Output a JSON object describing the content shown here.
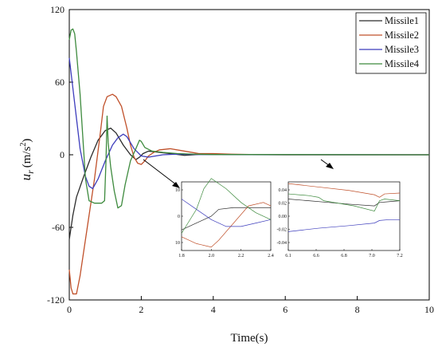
{
  "chart_data": {
    "type": "line",
    "xlabel": "Time(s)",
    "ylabel_main": "u",
    "ylabel_sub": "r",
    "ylabel_unit": "(m/s",
    "ylabel_exp": "2",
    "ylabel_close": ")",
    "xlim": [
      0,
      10
    ],
    "ylim": [
      -120,
      120
    ],
    "x_ticks": [
      0,
      2,
      4,
      6,
      8,
      10
    ],
    "y_ticks": [
      -120,
      -60,
      0,
      60,
      120
    ],
    "grid": false,
    "legend_position": "top-right",
    "series": [
      {
        "name": "Missile1",
        "color": "#2b2b2b",
        "points": [
          [
            0,
            -70
          ],
          [
            0.1,
            -50
          ],
          [
            0.2,
            -35
          ],
          [
            0.4,
            -18
          ],
          [
            0.6,
            -2
          ],
          [
            0.8,
            12
          ],
          [
            1.0,
            20
          ],
          [
            1.15,
            22
          ],
          [
            1.3,
            18
          ],
          [
            1.5,
            8
          ],
          [
            1.7,
            0
          ],
          [
            1.85,
            -4
          ],
          [
            1.95,
            -2
          ],
          [
            2.05,
            1
          ],
          [
            2.2,
            3
          ],
          [
            2.5,
            2
          ],
          [
            2.8,
            1
          ],
          [
            3.2,
            -0.5
          ],
          [
            3.6,
            0.3
          ],
          [
            4.0,
            0.5
          ],
          [
            4.5,
            0.2
          ],
          [
            5,
            0.1
          ],
          [
            6,
            0
          ],
          [
            10,
            0
          ]
        ]
      },
      {
        "name": "Missile2",
        "color": "#c0502a",
        "points": [
          [
            0,
            -95
          ],
          [
            0.05,
            -110
          ],
          [
            0.1,
            -115
          ],
          [
            0.2,
            -115
          ],
          [
            0.3,
            -100
          ],
          [
            0.5,
            -60
          ],
          [
            0.7,
            -20
          ],
          [
            0.85,
            15
          ],
          [
            0.95,
            40
          ],
          [
            1.05,
            48
          ],
          [
            1.2,
            50
          ],
          [
            1.3,
            48
          ],
          [
            1.45,
            40
          ],
          [
            1.6,
            22
          ],
          [
            1.7,
            8
          ],
          [
            1.8,
            -2
          ],
          [
            1.9,
            -7
          ],
          [
            2.0,
            -8
          ],
          [
            2.1,
            -5
          ],
          [
            2.2,
            -1
          ],
          [
            2.35,
            2
          ],
          [
            2.5,
            4
          ],
          [
            2.8,
            5
          ],
          [
            3.2,
            3
          ],
          [
            3.6,
            1
          ],
          [
            4.0,
            1
          ],
          [
            4.5,
            0.5
          ],
          [
            5,
            0.2
          ],
          [
            6,
            0
          ],
          [
            10,
            0
          ]
        ]
      },
      {
        "name": "Missile3",
        "color": "#3c3cbc",
        "points": [
          [
            0,
            80
          ],
          [
            0.1,
            55
          ],
          [
            0.2,
            30
          ],
          [
            0.3,
            5
          ],
          [
            0.45,
            -18
          ],
          [
            0.55,
            -26
          ],
          [
            0.65,
            -28
          ],
          [
            0.8,
            -20
          ],
          [
            1.0,
            -5
          ],
          [
            1.2,
            8
          ],
          [
            1.35,
            14
          ],
          [
            1.5,
            17
          ],
          [
            1.6,
            15
          ],
          [
            1.7,
            10
          ],
          [
            1.8,
            5
          ],
          [
            1.9,
            2
          ],
          [
            2.0,
            -1
          ],
          [
            2.2,
            -2
          ],
          [
            2.4,
            -1
          ],
          [
            2.6,
            0
          ],
          [
            3.0,
            0.5
          ],
          [
            3.5,
            0.3
          ],
          [
            4,
            0.1
          ],
          [
            10,
            0
          ]
        ]
      },
      {
        "name": "Missile4",
        "color": "#3d8a3d",
        "points": [
          [
            0,
            95
          ],
          [
            0.05,
            103
          ],
          [
            0.1,
            104
          ],
          [
            0.15,
            100
          ],
          [
            0.2,
            85
          ],
          [
            0.3,
            50
          ],
          [
            0.45,
            -20
          ],
          [
            0.55,
            -38
          ],
          [
            0.7,
            -40
          ],
          [
            0.9,
            -40
          ],
          [
            0.98,
            -38
          ],
          [
            1.02,
            -5
          ],
          [
            1.05,
            32
          ],
          [
            1.08,
            10
          ],
          [
            1.15,
            -10
          ],
          [
            1.25,
            -30
          ],
          [
            1.35,
            -44
          ],
          [
            1.45,
            -42
          ],
          [
            1.55,
            -25
          ],
          [
            1.7,
            -5
          ],
          [
            1.85,
            5
          ],
          [
            1.95,
            12
          ],
          [
            2.0,
            11
          ],
          [
            2.1,
            6
          ],
          [
            2.3,
            3
          ],
          [
            2.6,
            2
          ],
          [
            3.0,
            1
          ],
          [
            3.5,
            0.5
          ],
          [
            4,
            0.2
          ],
          [
            10,
            0
          ]
        ]
      }
    ],
    "insets": [
      {
        "xlim": [
          1.8,
          2.4
        ],
        "ylim": [
          -10,
          10
        ],
        "x_ticks": [
          "1.8",
          "2.0",
          "2.2",
          "2.4"
        ],
        "y_ticks": [
          "10",
          "0",
          "10"
        ],
        "series": [
          {
            "name": "Missile1",
            "points": [
              [
                1.8,
                -4
              ],
              [
                1.9,
                -2
              ],
              [
                2.0,
                0
              ],
              [
                2.05,
                2
              ],
              [
                2.15,
                2.5
              ],
              [
                2.3,
                2.5
              ],
              [
                2.4,
                2.5
              ]
            ]
          },
          {
            "name": "Missile2",
            "points": [
              [
                1.8,
                -6
              ],
              [
                1.9,
                -8
              ],
              [
                2.0,
                -9
              ],
              [
                2.05,
                -7
              ],
              [
                2.15,
                -2
              ],
              [
                2.25,
                3
              ],
              [
                2.35,
                4
              ],
              [
                2.4,
                3
              ]
            ]
          },
          {
            "name": "Missile3",
            "points": [
              [
                1.8,
                5
              ],
              [
                1.9,
                2
              ],
              [
                2.0,
                -1
              ],
              [
                2.1,
                -3
              ],
              [
                2.2,
                -3
              ],
              [
                2.3,
                -2
              ],
              [
                2.4,
                -1
              ]
            ]
          },
          {
            "name": "Missile4",
            "points": [
              [
                1.8,
                -5
              ],
              [
                1.9,
                2
              ],
              [
                1.95,
                8
              ],
              [
                2.0,
                11
              ],
              [
                2.1,
                8
              ],
              [
                2.2,
                4
              ],
              [
                2.3,
                1
              ],
              [
                2.4,
                -1
              ]
            ]
          }
        ]
      },
      {
        "xlim": [
          6.1,
          7.2
        ],
        "ylim": [
          -0.04,
          0.04
        ],
        "x_ticks": [
          "6.1",
          "6.6",
          "6.8",
          "7.0",
          "7.2"
        ],
        "y_ticks": [
          "0.04",
          "0.02",
          "0.00",
          "-0.02",
          "-0.04"
        ],
        "series": [
          {
            "name": "Missile1",
            "points": [
              [
                6.1,
                0.02
              ],
              [
                6.3,
                0.018
              ],
              [
                6.5,
                0.016
              ],
              [
                6.7,
                0.014
              ],
              [
                6.95,
                0.012
              ],
              [
                7.0,
                0.016
              ],
              [
                7.1,
                0.017
              ],
              [
                7.2,
                0.018
              ]
            ]
          },
          {
            "name": "Missile2",
            "points": [
              [
                6.1,
                0.038
              ],
              [
                6.4,
                0.034
              ],
              [
                6.7,
                0.03
              ],
              [
                6.95,
                0.025
              ],
              [
                7.0,
                0.022
              ],
              [
                7.05,
                0.026
              ],
              [
                7.2,
                0.027
              ]
            ]
          },
          {
            "name": "Missile3",
            "points": [
              [
                6.1,
                -0.018
              ],
              [
                6.4,
                -0.014
              ],
              [
                6.7,
                -0.011
              ],
              [
                6.95,
                -0.008
              ],
              [
                7.0,
                -0.005
              ],
              [
                7.1,
                -0.004
              ],
              [
                7.2,
                -0.004
              ]
            ]
          },
          {
            "name": "Missile4",
            "points": [
              [
                6.1,
                0.026
              ],
              [
                6.3,
                0.024
              ],
              [
                6.4,
                0.022
              ],
              [
                6.45,
                0.018
              ],
              [
                6.6,
                0.015
              ],
              [
                6.75,
                0.012
              ],
              [
                6.95,
                0.006
              ],
              [
                7.0,
                0.018
              ],
              [
                7.05,
                0.02
              ],
              [
                7.2,
                0.018
              ]
            ]
          }
        ]
      }
    ]
  }
}
